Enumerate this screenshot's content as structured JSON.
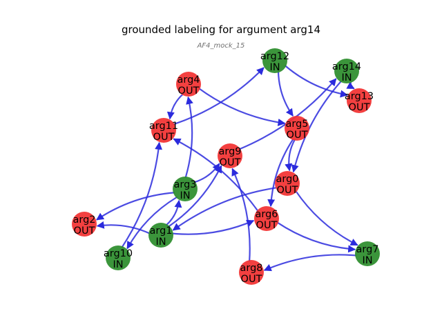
{
  "title": "grounded labeling for argument arg14",
  "subtitle": "AF4_mock_15",
  "colors": {
    "in": "#2a8c2a",
    "out": "#f23030",
    "edge": "#2b2bdd"
  },
  "nodes": [
    {
      "id": "arg0",
      "status": "OUT"
    },
    {
      "id": "arg1",
      "status": "IN"
    },
    {
      "id": "arg2",
      "status": "OUT"
    },
    {
      "id": "arg3",
      "status": "IN"
    },
    {
      "id": "arg4",
      "status": "OUT"
    },
    {
      "id": "arg5",
      "status": "OUT"
    },
    {
      "id": "arg6",
      "status": "OUT"
    },
    {
      "id": "arg7",
      "status": "IN"
    },
    {
      "id": "arg8",
      "status": "OUT"
    },
    {
      "id": "arg9",
      "status": "OUT"
    },
    {
      "id": "arg10",
      "status": "IN"
    },
    {
      "id": "arg11",
      "status": "OUT"
    },
    {
      "id": "arg12",
      "status": "IN"
    },
    {
      "id": "arg13",
      "status": "OUT"
    },
    {
      "id": "arg14",
      "status": "IN"
    }
  ],
  "edges": [
    {
      "from": "arg4",
      "to": "arg11"
    },
    {
      "from": "arg4",
      "to": "arg5"
    },
    {
      "from": "arg11",
      "to": "arg12"
    },
    {
      "from": "arg12",
      "to": "arg5"
    },
    {
      "from": "arg12",
      "to": "arg13"
    },
    {
      "from": "arg14",
      "to": "arg13"
    },
    {
      "from": "arg9",
      "to": "arg14"
    },
    {
      "from": "arg14",
      "to": "arg0"
    },
    {
      "from": "arg3",
      "to": "arg4"
    },
    {
      "from": "arg3",
      "to": "arg9"
    },
    {
      "from": "arg3",
      "to": "arg2"
    },
    {
      "from": "arg6",
      "to": "arg11"
    },
    {
      "from": "arg6",
      "to": "arg7"
    },
    {
      "from": "arg5",
      "to": "arg6"
    },
    {
      "from": "arg5",
      "to": "arg0"
    },
    {
      "from": "arg0",
      "to": "arg1"
    },
    {
      "from": "arg0",
      "to": "arg7"
    },
    {
      "from": "arg1",
      "to": "arg2"
    },
    {
      "from": "arg1",
      "to": "arg6"
    },
    {
      "from": "arg1",
      "to": "arg3"
    },
    {
      "from": "arg1",
      "to": "arg9"
    },
    {
      "from": "arg10",
      "to": "arg11"
    },
    {
      "from": "arg3",
      "to": "arg10"
    },
    {
      "from": "arg7",
      "to": "arg8"
    },
    {
      "from": "arg8",
      "to": "arg9"
    }
  ]
}
